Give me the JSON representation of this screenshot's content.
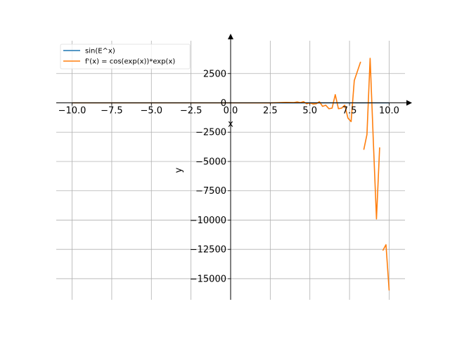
{
  "chart_data": {
    "type": "line",
    "xlabel": "x",
    "ylabel": "y",
    "xlim": [
      -11.0,
      11.0
    ],
    "ylim": [
      -16800,
      5300
    ],
    "grid": true,
    "legend_position": "top-left",
    "xticks": [
      -10.0,
      -7.5,
      -5.0,
      -2.5,
      0.0,
      2.5,
      5.0,
      7.5,
      10.0
    ],
    "xtick_labels": [
      "−10.0",
      "−7.5",
      "−5.0",
      "−2.5",
      "0.0",
      "2.5",
      "5.0",
      "7.5",
      "10.0"
    ],
    "yticks": [
      2500,
      0,
      -2500,
      -5000,
      -7500,
      -10000,
      -12500,
      -15000
    ],
    "ytick_labels": [
      "2500",
      "0",
      "−2500",
      "−5000",
      "−7500",
      "−10000",
      "−12500",
      "−15000"
    ],
    "series": [
      {
        "name": "sin(E^x)",
        "color": "#1f77b4",
        "x": [
          -10.0,
          10.0
        ],
        "y": [
          0,
          0
        ]
      },
      {
        "name": "f'(x) = cos(exp(x))*exp(x)",
        "color": "#ff7f0e",
        "segments": [
          {
            "x": [
              -10.0,
              0.0,
              2.5,
              3.5,
              4.0,
              4.2,
              4.4,
              4.6,
              4.8,
              5.0,
              5.2,
              5.4,
              5.6,
              5.8,
              6.0,
              6.2,
              6.4,
              6.6,
              6.8,
              7.0,
              7.2,
              7.4,
              7.6,
              7.8,
              8.0,
              8.2
            ],
            "y": [
              0,
              0,
              -5,
              40,
              30,
              80,
              20,
              100,
              -80,
              0,
              -100,
              -80,
              100,
              -300,
              -200,
              -500,
              -450,
              700,
              -500,
              -450,
              -200,
              -1300,
              -1600,
              1900,
              2700,
              3500
            ]
          },
          {
            "x": [
              8.4,
              8.6,
              8.8,
              9.0,
              9.2,
              9.4
            ],
            "y": [
              -4000,
              -2700,
              3800,
              -3200,
              -9900,
              -3800
            ]
          },
          {
            "x": [
              9.6,
              9.8,
              10.0
            ],
            "y": [
              -12600,
              -12100,
              -16000
            ]
          }
        ]
      }
    ]
  }
}
